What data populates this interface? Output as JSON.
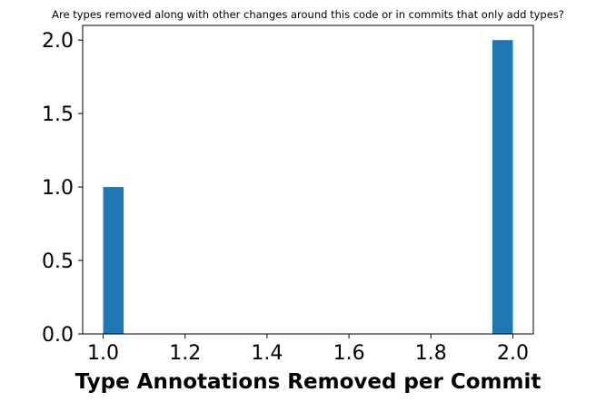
{
  "chart_data": {
    "type": "bar",
    "title": "Are types removed along with other changes around this code or in commits that only add types?",
    "xlabel": "Type Annotations Removed per Commit",
    "ylabel": "",
    "xlim": [
      0.95,
      2.05
    ],
    "ylim": [
      0,
      2.1
    ],
    "xticks": [
      "1.0",
      "1.2",
      "1.4",
      "1.6",
      "1.8",
      "2.0"
    ],
    "xtick_values": [
      1.0,
      1.2,
      1.4,
      1.6,
      1.8,
      2.0
    ],
    "yticks": [
      "0.0",
      "0.5",
      "1.0",
      "1.5",
      "2.0"
    ],
    "ytick_values": [
      0.0,
      0.5,
      1.0,
      1.5,
      2.0
    ],
    "bars": [
      {
        "x_start": 1.0,
        "x_end": 1.05,
        "value": 1
      },
      {
        "x_start": 1.95,
        "x_end": 2.0,
        "value": 2
      }
    ],
    "bar_color": "#1f77b4",
    "grid": false,
    "legend": false
  }
}
